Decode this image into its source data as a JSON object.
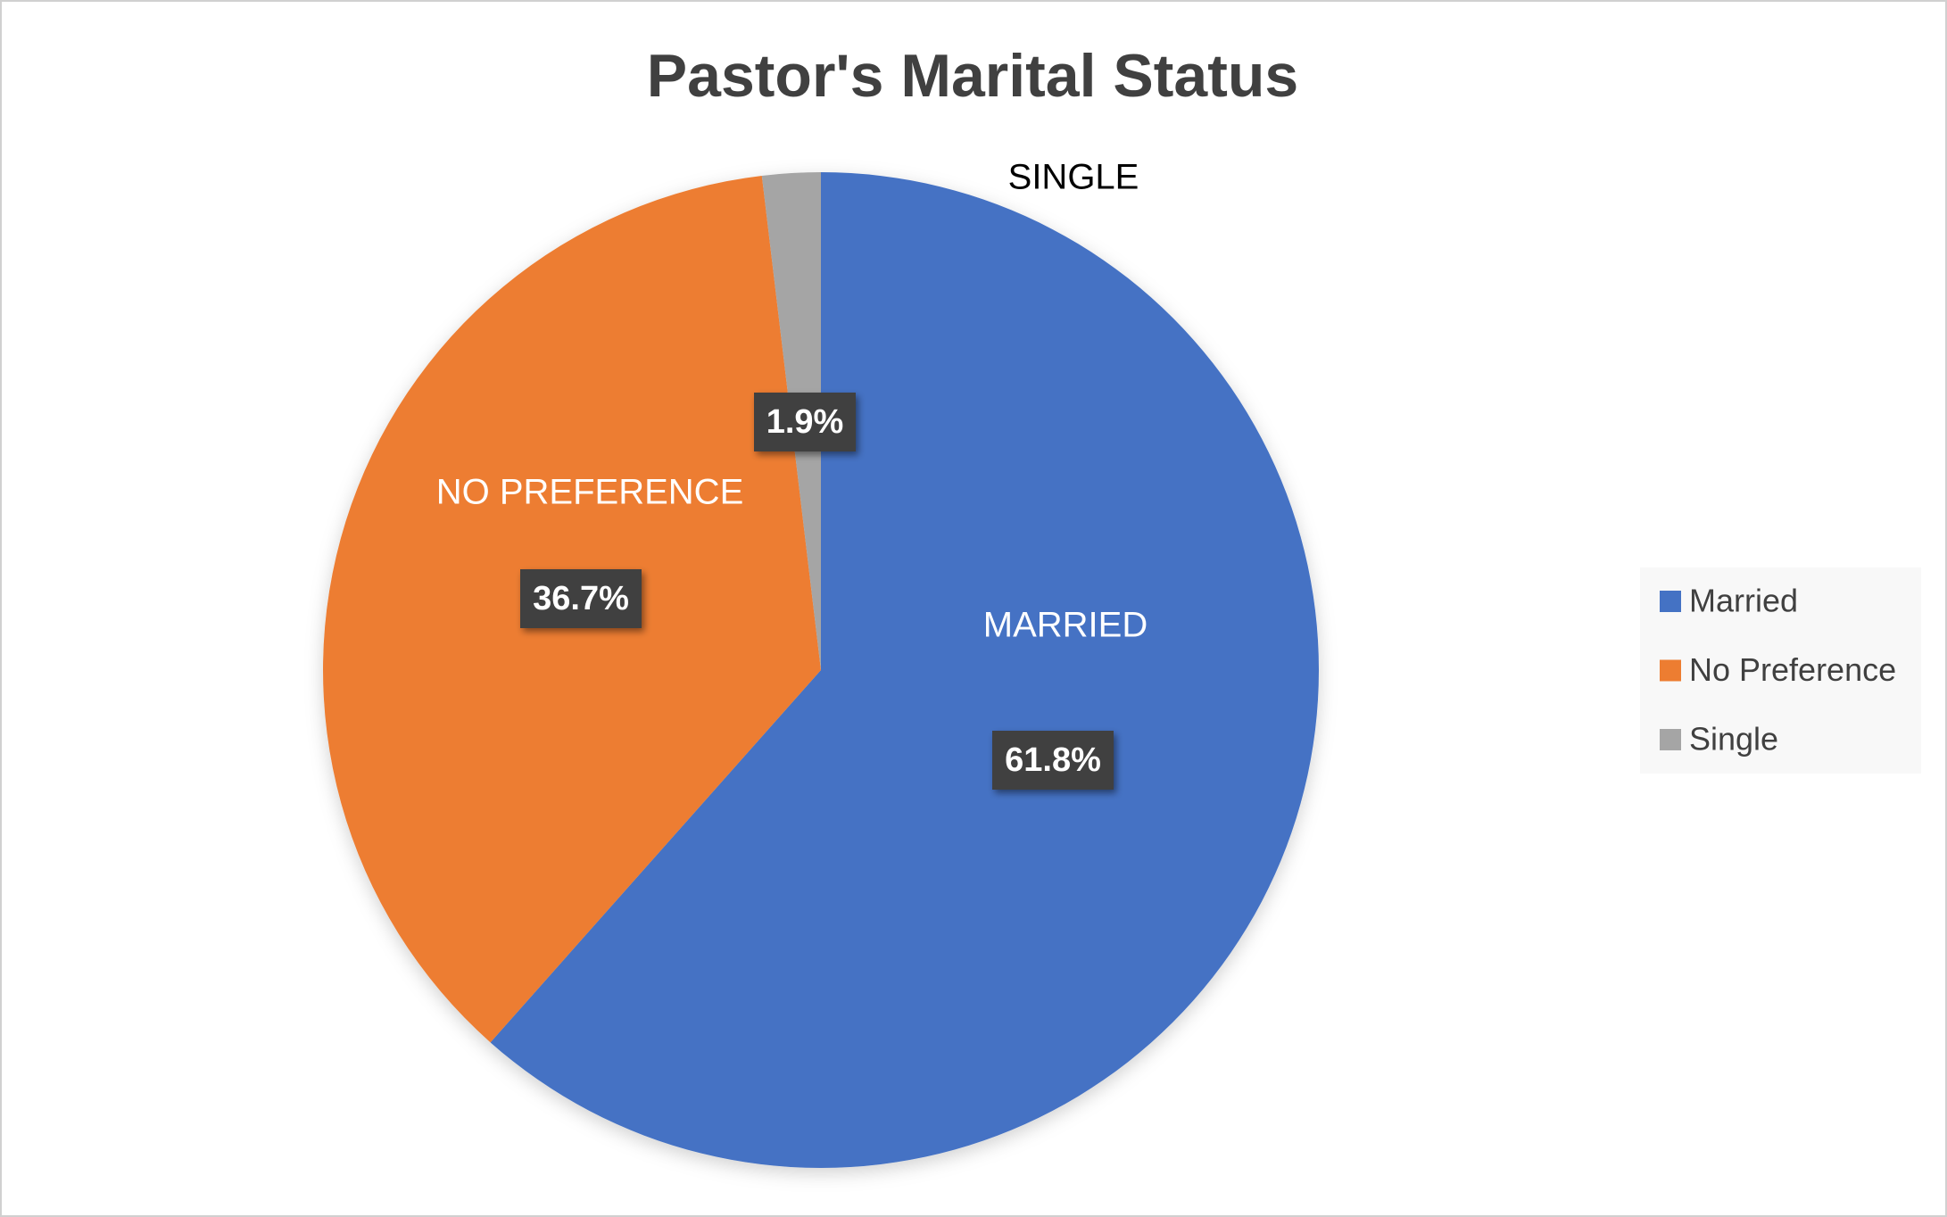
{
  "chart_data": {
    "type": "pie",
    "title": "Pastor's Marital Status",
    "categories": [
      "Married",
      "No Preference",
      "Single"
    ],
    "category_labels": [
      "MARRIED",
      "NO PREFERENCE",
      "SINGLE"
    ],
    "values": [
      61.8,
      36.7,
      1.9
    ],
    "value_labels": [
      "61.8%",
      "36.7%",
      "1.9%"
    ],
    "colors": [
      "#4472c4",
      "#ed7d31",
      "#a5a5a5"
    ],
    "legend": "right"
  }
}
